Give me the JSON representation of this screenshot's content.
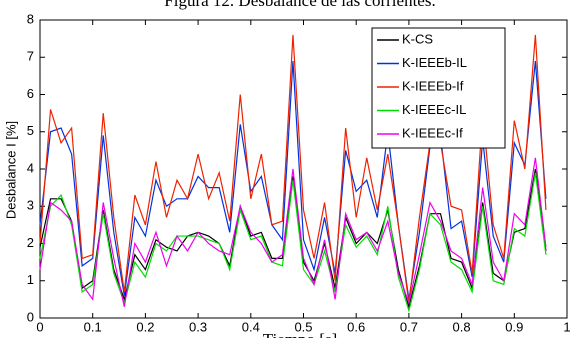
{
  "chart_data": {
    "type": "line",
    "title": "Figura 12. Desbalance de las corrientes.",
    "xlabel": "Tiempo [s]",
    "ylabel": "Desbalance I [%]",
    "x": [
      0,
      0.02,
      0.04,
      0.06,
      0.08,
      0.1,
      0.12,
      0.14,
      0.16,
      0.18,
      0.2,
      0.22,
      0.24,
      0.26,
      0.28,
      0.3,
      0.32,
      0.34,
      0.36,
      0.38,
      0.4,
      0.42,
      0.44,
      0.46,
      0.48,
      0.5,
      0.52,
      0.54,
      0.56,
      0.58,
      0.6,
      0.62,
      0.64,
      0.66,
      0.68,
      0.7,
      0.72,
      0.74,
      0.76,
      0.78,
      0.8,
      0.82,
      0.84,
      0.86,
      0.88,
      0.9,
      0.92,
      0.94,
      0.96
    ],
    "series": [
      {
        "name": "K-CS",
        "color": "#000000",
        "values": [
          1.9,
          3.2,
          3.2,
          2.6,
          0.8,
          1.0,
          2.9,
          1.3,
          0.5,
          1.7,
          1.3,
          2.1,
          1.9,
          1.8,
          2.2,
          2.3,
          2.2,
          2.0,
          1.4,
          3.0,
          2.2,
          2.3,
          1.6,
          1.6,
          3.8,
          1.5,
          1.0,
          2.0,
          0.8,
          2.7,
          2.0,
          2.3,
          2.0,
          2.9,
          1.3,
          0.3,
          1.4,
          2.8,
          2.8,
          1.6,
          1.5,
          0.8,
          3.1,
          1.2,
          1.0,
          2.3,
          2.4,
          4.0,
          1.8
        ]
      },
      {
        "name": "K-IEEEb-IL",
        "color": "#0033dd",
        "values": [
          2.5,
          5.0,
          5.1,
          4.4,
          1.4,
          1.6,
          4.9,
          2.3,
          0.6,
          2.7,
          2.2,
          3.7,
          3.0,
          3.2,
          3.2,
          3.8,
          3.5,
          3.5,
          2.3,
          5.2,
          3.4,
          3.8,
          2.5,
          2.1,
          6.9,
          2.1,
          1.3,
          2.7,
          1.2,
          4.5,
          3.4,
          3.7,
          2.7,
          5.0,
          2.5,
          0.5,
          2.3,
          4.6,
          4.9,
          2.4,
          2.6,
          1.1,
          4.8,
          2.2,
          1.5,
          4.7,
          4.1,
          6.9,
          3.2
        ]
      },
      {
        "name": "K-IEEEb-If",
        "color": "#ee2200",
        "values": [
          2.0,
          5.6,
          4.7,
          5.1,
          1.6,
          1.7,
          5.5,
          2.7,
          0.7,
          3.3,
          2.5,
          4.2,
          2.7,
          3.7,
          3.2,
          4.4,
          3.2,
          3.9,
          2.6,
          6.0,
          3.2,
          4.4,
          2.5,
          2.6,
          7.6,
          2.9,
          1.6,
          3.1,
          1.0,
          5.1,
          2.7,
          4.3,
          2.9,
          4.4,
          2.5,
          0.4,
          2.7,
          4.7,
          4.7,
          3.0,
          2.9,
          1.2,
          5.5,
          2.5,
          1.6,
          5.3,
          4.0,
          7.6,
          2.9
        ]
      },
      {
        "name": "K-IEEEc-IL",
        "color": "#00dd00",
        "values": [
          1.6,
          3.0,
          3.3,
          2.5,
          0.7,
          0.9,
          2.8,
          1.2,
          0.4,
          1.5,
          1.1,
          2.0,
          1.8,
          2.2,
          2.2,
          2.2,
          2.1,
          2.0,
          1.3,
          2.9,
          2.1,
          2.2,
          1.5,
          1.4,
          3.7,
          1.3,
          0.9,
          1.8,
          0.7,
          2.5,
          1.9,
          2.2,
          1.7,
          3.0,
          1.1,
          0.2,
          1.3,
          2.8,
          2.5,
          1.5,
          1.3,
          0.7,
          3.0,
          1.0,
          0.9,
          2.4,
          2.2,
          3.9,
          1.7
        ]
      },
      {
        "name": "K-IEEEc-If",
        "color": "#ee00ee",
        "values": [
          1.3,
          3.1,
          2.9,
          2.6,
          0.9,
          0.5,
          3.1,
          1.6,
          0.3,
          2.0,
          1.5,
          2.3,
          1.4,
          2.2,
          1.8,
          2.3,
          2.0,
          1.8,
          1.7,
          3.0,
          2.3,
          2.0,
          1.5,
          1.7,
          4.0,
          1.6,
          0.9,
          2.1,
          0.5,
          2.8,
          2.1,
          2.3,
          1.8,
          2.6,
          1.2,
          0.4,
          1.7,
          3.1,
          2.6,
          1.8,
          1.6,
          0.9,
          3.5,
          1.5,
          1.0,
          2.8,
          2.5,
          4.3,
          1.9
        ]
      }
    ],
    "xlim": [
      0,
      1
    ],
    "xticks": [
      0,
      0.1,
      0.2,
      0.3,
      0.4,
      0.5,
      0.6,
      0.7,
      0.8,
      0.9,
      1
    ],
    "ylim": [
      0,
      8
    ],
    "yticks": [
      0,
      1,
      2,
      3,
      4,
      5,
      6,
      7,
      8
    ],
    "grid": false,
    "legend": "upper right"
  }
}
